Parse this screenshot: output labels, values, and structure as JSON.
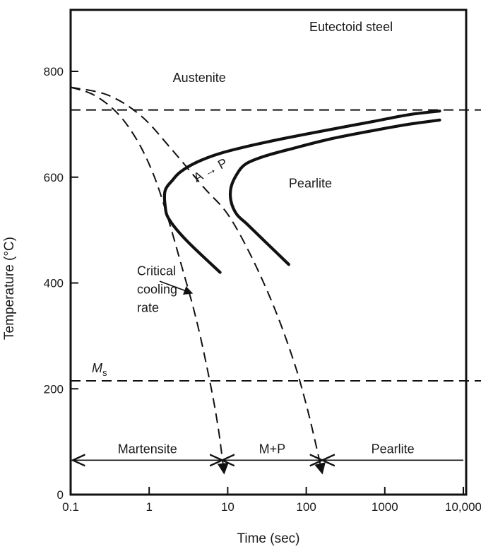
{
  "chart_data": {
    "type": "line",
    "title": "Eutectoid steel",
    "xlabel": "Time (sec)",
    "ylabel": "Temperature (°C)",
    "x_scale": "log",
    "xlim": [
      0.1,
      10000
    ],
    "ylim": [
      0,
      800
    ],
    "x_tick_labels": [
      "0.1",
      "1",
      "10",
      "100",
      "1000",
      "10,000"
    ],
    "y_tick_labels": [
      "0",
      "200",
      "400",
      "600",
      "800"
    ],
    "grid": false,
    "horizontal_lines": [
      {
        "value": 727,
        "style": "dashed"
      },
      {
        "value": 215,
        "label": "M",
        "label_sub": "s",
        "style": "dashed"
      }
    ],
    "series": [
      {
        "style": "bold",
        "x": [
          5000,
          2000,
          700,
          200,
          60,
          20,
          8,
          4,
          2.5,
          2,
          1.6,
          1.6,
          1.8,
          3,
          8
        ],
        "y": [
          725,
          718,
          705,
          690,
          675,
          660,
          645,
          628,
          610,
          595,
          575,
          545,
          520,
          480,
          420
        ]
      },
      {
        "style": "bold",
        "x": [
          5000,
          2000,
          700,
          200,
          70,
          30,
          17,
          13,
          11,
          11,
          13,
          18,
          30,
          60
        ],
        "y": [
          708,
          700,
          688,
          672,
          655,
          640,
          625,
          605,
          580,
          555,
          530,
          510,
          478,
          435
        ]
      },
      {
        "style": "dashed",
        "x": [
          0.1,
          0.2,
          0.4,
          0.7,
          1.1,
          1.6,
          2.5,
          4,
          6,
          7.5,
          8.5,
          9
        ],
        "y": [
          770,
          755,
          720,
          670,
          610,
          540,
          440,
          330,
          210,
          130,
          70,
          40
        ]
      },
      {
        "style": "dashed",
        "x": [
          0.1,
          0.3,
          0.8,
          2,
          5,
          10,
          20,
          40,
          70,
          100,
          130,
          160
        ],
        "y": [
          770,
          755,
          715,
          650,
          580,
          530,
          450,
          350,
          250,
          170,
          100,
          40
        ]
      }
    ],
    "annotations": [
      {
        "text": "Austenite",
        "x": 2,
        "y": 780
      },
      {
        "text": "Pearlite",
        "x": 60,
        "y": 580
      },
      {
        "text": "A → P",
        "x": 4,
        "y": 590
      },
      {
        "text": "Critical",
        "x": 0.7,
        "y": 415
      },
      {
        "text": "cooling",
        "x": 0.7,
        "y": 380
      },
      {
        "text": "rate",
        "x": 0.7,
        "y": 345
      }
    ],
    "bottom_regions": [
      {
        "label": "Martensite",
        "x_start": 0.1,
        "x_end": 8.5
      },
      {
        "label": "M+P",
        "x_start": 8.5,
        "x_end": 160
      },
      {
        "label": "Pearlite",
        "x_start": 160,
        "x_end": 10000
      }
    ]
  }
}
